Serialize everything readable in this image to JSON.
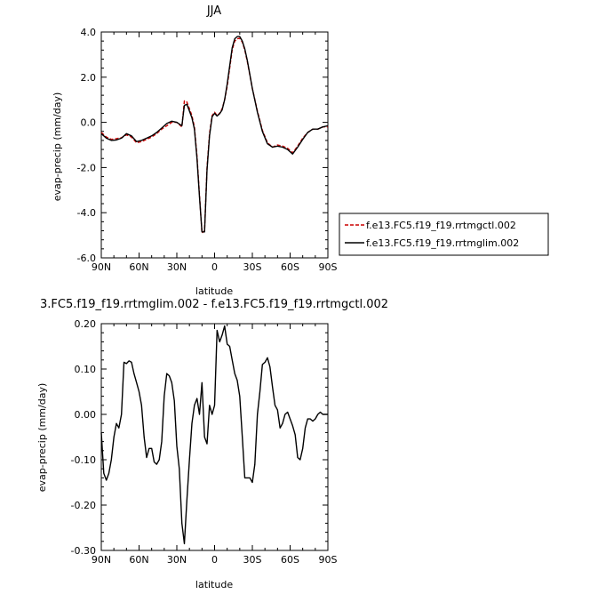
{
  "chart_data": [
    {
      "type": "line",
      "title": "JJA",
      "xlabel": "latitude",
      "ylabel": "evap-precip (mm/day)",
      "xticks": [
        "90N",
        "60N",
        "30N",
        "0",
        "30S",
        "60S",
        "90S"
      ],
      "yticks": [
        "4.0",
        "2.0",
        "0.0",
        "-2.0",
        "-4.0",
        "-6.0"
      ],
      "xlim": [
        90,
        -90
      ],
      "ylim": [
        -6,
        4
      ],
      "legend_position": "right",
      "x": [
        90,
        86,
        82,
        78,
        74,
        70,
        66,
        62,
        58,
        54,
        50,
        46,
        42,
        38,
        34,
        30,
        26,
        24,
        22,
        20,
        18,
        16,
        14,
        12,
        10,
        8,
        6,
        4,
        2,
        0,
        -2,
        -4,
        -6,
        -8,
        -10,
        -12,
        -14,
        -16,
        -18,
        -20,
        -22,
        -24,
        -26,
        -30,
        -34,
        -38,
        -42,
        -46,
        -50,
        -54,
        -58,
        -62,
        -66,
        -70,
        -74,
        -78,
        -82,
        -86,
        -90
      ],
      "series": [
        {
          "name": "f.e13.FC5.f19_f19.rrtmgctl.002",
          "color": "#cc0000",
          "dash": true,
          "values": [
            -0.45,
            -0.65,
            -0.75,
            -0.72,
            -0.68,
            -0.55,
            -0.65,
            -0.9,
            -0.85,
            -0.75,
            -0.65,
            -0.5,
            -0.3,
            -0.15,
            0.0,
            0.0,
            -0.2,
            0.95,
            0.9,
            0.6,
            0.3,
            -0.2,
            -1.5,
            -3.2,
            -4.9,
            -4.8,
            -2.0,
            -0.5,
            0.3,
            0.45,
            0.3,
            0.4,
            0.6,
            1.0,
            1.6,
            2.4,
            3.2,
            3.6,
            3.7,
            3.72,
            3.55,
            3.2,
            2.7,
            1.5,
            0.5,
            -0.35,
            -0.9,
            -1.1,
            -1.0,
            -1.05,
            -1.15,
            -1.35,
            -1.05,
            -0.7,
            -0.45,
            -0.3,
            -0.3,
            -0.2,
            -0.2
          ]
        },
        {
          "name": "f.e13.FC5.f19_f19.rrtmglim.002",
          "color": "#000000",
          "dash": false,
          "values": [
            -0.5,
            -0.7,
            -0.8,
            -0.78,
            -0.7,
            -0.5,
            -0.6,
            -0.85,
            -0.8,
            -0.7,
            -0.6,
            -0.45,
            -0.25,
            -0.05,
            0.05,
            0.0,
            -0.15,
            0.75,
            0.8,
            0.5,
            0.2,
            -0.3,
            -1.6,
            -3.3,
            -4.85,
            -4.85,
            -2.1,
            -0.6,
            0.25,
            0.4,
            0.28,
            0.38,
            0.55,
            1.0,
            1.7,
            2.5,
            3.3,
            3.7,
            3.8,
            3.8,
            3.6,
            3.25,
            2.75,
            1.5,
            0.45,
            -0.4,
            -0.95,
            -1.1,
            -1.05,
            -1.1,
            -1.2,
            -1.4,
            -1.1,
            -0.75,
            -0.45,
            -0.3,
            -0.3,
            -0.2,
            -0.15
          ]
        }
      ]
    },
    {
      "type": "line",
      "title": "3.FC5.f19_f19.rrtmglim.002 - f.e13.FC5.f19_f19.rrtmgctl.002",
      "xlabel": "latitude",
      "ylabel": "evap-precip (mm/day)",
      "xticks": [
        "90N",
        "60N",
        "30N",
        "0",
        "30S",
        "60S",
        "90S"
      ],
      "yticks": [
        "0.20",
        "0.10",
        "0.00",
        "-0.10",
        "-0.20",
        "-0.30"
      ],
      "xlim": [
        90,
        -90
      ],
      "ylim": [
        -0.3,
        0.2
      ],
      "x": [
        90,
        88,
        86,
        84,
        82,
        80,
        78,
        76,
        74,
        72,
        70,
        68,
        66,
        64,
        62,
        60,
        58,
        56,
        54,
        52,
        50,
        48,
        46,
        44,
        42,
        40,
        38,
        36,
        34,
        32,
        30,
        28,
        26,
        24,
        22,
        20,
        18,
        16,
        14,
        12,
        10,
        8,
        6,
        4,
        2,
        0,
        -2,
        -4,
        -6,
        -8,
        -10,
        -12,
        -14,
        -16,
        -18,
        -20,
        -22,
        -24,
        -26,
        -28,
        -30,
        -32,
        -34,
        -36,
        -38,
        -40,
        -42,
        -44,
        -46,
        -48,
        -50,
        -52,
        -54,
        -56,
        -58,
        -60,
        -62,
        -64,
        -66,
        -68,
        -70,
        -72,
        -74,
        -76,
        -78,
        -80,
        -82,
        -84,
        -86,
        -88,
        -90
      ],
      "series": [
        {
          "name": "",
          "color": "#000000",
          "dash": false,
          "values": [
            -0.04,
            -0.13,
            -0.145,
            -0.13,
            -0.1,
            -0.05,
            -0.02,
            -0.03,
            0.0,
            0.115,
            0.112,
            0.118,
            0.115,
            0.09,
            0.07,
            0.05,
            0.02,
            -0.05,
            -0.095,
            -0.075,
            -0.075,
            -0.105,
            -0.11,
            -0.1,
            -0.06,
            0.04,
            0.09,
            0.085,
            0.07,
            0.03,
            -0.07,
            -0.12,
            -0.24,
            -0.285,
            -0.19,
            -0.1,
            -0.02,
            0.02,
            0.035,
            0.0,
            0.07,
            -0.05,
            -0.065,
            0.02,
            0.0,
            0.02,
            0.185,
            0.16,
            0.175,
            0.195,
            0.155,
            0.15,
            0.12,
            0.09,
            0.075,
            0.04,
            -0.05,
            -0.14,
            -0.14,
            -0.14,
            -0.15,
            -0.11,
            0.0,
            0.05,
            0.11,
            0.115,
            0.125,
            0.105,
            0.06,
            0.02,
            0.01,
            -0.03,
            -0.02,
            0.0,
            0.005,
            -0.01,
            -0.025,
            -0.045,
            -0.095,
            -0.1,
            -0.075,
            -0.03,
            -0.01,
            -0.01,
            -0.015,
            -0.01,
            0.0,
            0.005,
            0.0,
            0.0,
            0.0
          ]
        }
      ]
    }
  ]
}
